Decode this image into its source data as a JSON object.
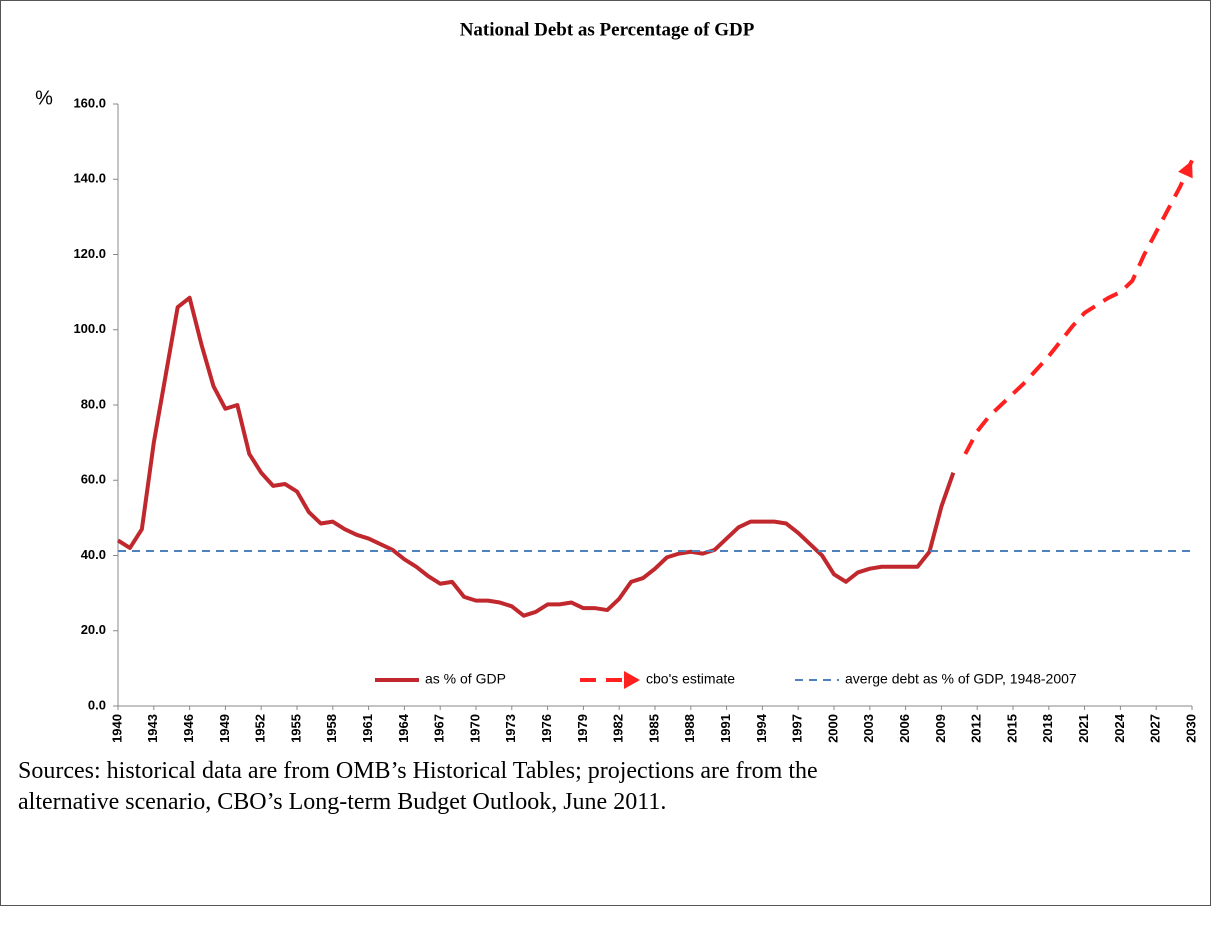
{
  "chart_data": {
    "type": "line",
    "title": "National Debt as Percentage of GDP",
    "y_label": "%",
    "xlim": [
      1940,
      2030
    ],
    "xticks": [
      1940,
      1943,
      1946,
      1949,
      1952,
      1955,
      1958,
      1961,
      1964,
      1967,
      1970,
      1973,
      1976,
      1979,
      1982,
      1985,
      1988,
      1991,
      1994,
      1997,
      2000,
      2003,
      2006,
      2009,
      2012,
      2015,
      2018,
      2021,
      2024,
      2027,
      2030
    ],
    "ylim": [
      0,
      160
    ],
    "yticks": [
      {
        "value": 0,
        "label": "0.0"
      },
      {
        "value": 20,
        "label": "20.0"
      },
      {
        "value": 40,
        "label": "40.0"
      },
      {
        "value": 60,
        "label": "60.0"
      },
      {
        "value": 80,
        "label": "80.0"
      },
      {
        "value": 100,
        "label": "100.0"
      },
      {
        "value": 120,
        "label": "120.0"
      },
      {
        "value": 140,
        "label": "140.0"
      },
      {
        "value": 160,
        "label": "160.0"
      }
    ],
    "grid": false,
    "legend": "bottom",
    "series": [
      {
        "name": "as % of GDP",
        "color": "#c0282d",
        "line_style": "solid",
        "x": [
          1940,
          1941,
          1942,
          1943,
          1944,
          1945,
          1946,
          1947,
          1948,
          1949,
          1950,
          1951,
          1952,
          1953,
          1954,
          1955,
          1956,
          1957,
          1958,
          1959,
          1960,
          1961,
          1962,
          1963,
          1964,
          1965,
          1966,
          1967,
          1968,
          1969,
          1970,
          1971,
          1972,
          1973,
          1974,
          1975,
          1976,
          1977,
          1978,
          1979,
          1980,
          1981,
          1982,
          1983,
          1984,
          1985,
          1986,
          1987,
          1988,
          1989,
          1990,
          1991,
          1992,
          1993,
          1994,
          1995,
          1996,
          1997,
          1998,
          1999,
          2000,
          2001,
          2002,
          2003,
          2004,
          2005,
          2006,
          2007,
          2008,
          2009,
          2010
        ],
        "values": [
          44,
          42,
          47,
          70,
          88,
          106,
          108.5,
          96,
          85,
          79,
          80,
          67,
          62,
          58.5,
          59,
          57,
          51.5,
          48.5,
          49,
          47,
          45.5,
          44.5,
          43,
          41.5,
          39,
          37,
          34.5,
          32.5,
          33,
          29,
          28,
          28,
          27.5,
          26.5,
          24,
          25,
          27,
          27,
          27.5,
          26,
          26,
          25.5,
          28.5,
          33,
          34,
          36.5,
          39.5,
          40.5,
          41,
          40.5,
          41.5,
          44.5,
          47.5,
          49,
          49,
          49,
          48.5,
          46,
          43,
          40,
          35,
          33,
          35.5,
          36.5,
          37,
          37,
          37,
          37,
          41,
          53,
          62
        ]
      },
      {
        "name": "cbo's estimate",
        "color": "#ff2020",
        "line_style": "dashed",
        "end_arrow": true,
        "x": [
          2011,
          2012,
          2013,
          2014,
          2015,
          2016,
          2017,
          2018,
          2019,
          2020,
          2021,
          2022,
          2023,
          2024,
          2025,
          2026,
          2027,
          2028,
          2029,
          2030
        ],
        "values": [
          67,
          73,
          77,
          80,
          83,
          86,
          89.5,
          93,
          97,
          101,
          104.5,
          106.5,
          108.5,
          110,
          113,
          120,
          126,
          132,
          138,
          145
        ]
      },
      {
        "name": "averge debt as % of GDP, 1948-2007",
        "color": "#4f81bd",
        "line_style": "dotted",
        "x": [
          1940,
          2030
        ],
        "values": [
          41.2,
          41.2
        ]
      }
    ],
    "note": "Sources: historical data are from OMB’s Historical Tables; projections are from the alternative scenario, CBO’s Long-term Budget Outlook, June 2011."
  }
}
